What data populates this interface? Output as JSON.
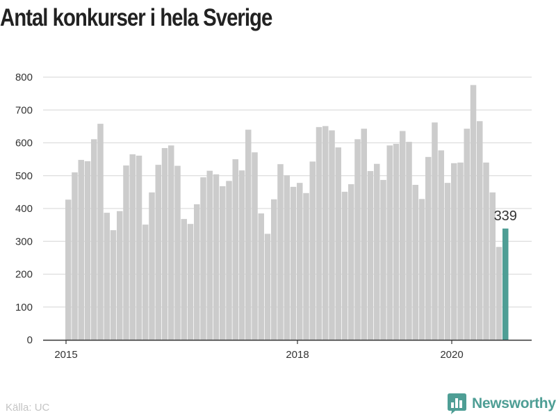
{
  "chart_data": {
    "type": "bar",
    "title": "Antal konkurser i hela Sverige",
    "xlabel": "",
    "ylabel": "",
    "ylim": [
      0,
      800
    ],
    "yticks": [
      0,
      100,
      200,
      300,
      400,
      500,
      600,
      700,
      800
    ],
    "grid": true,
    "legend": "none",
    "x_tick_labels": [
      {
        "label": "2015",
        "index": 0
      },
      {
        "label": "2018",
        "index": 36
      },
      {
        "label": "2020",
        "index": 60
      }
    ],
    "values": [
      427,
      510,
      548,
      544,
      611,
      658,
      387,
      334,
      392,
      531,
      565,
      561,
      351,
      449,
      533,
      584,
      592,
      530,
      368,
      353,
      413,
      495,
      515,
      504,
      468,
      484,
      550,
      516,
      640,
      571,
      385,
      323,
      428,
      535,
      501,
      466,
      478,
      447,
      543,
      648,
      651,
      638,
      586,
      451,
      474,
      611,
      643,
      514,
      536,
      487,
      592,
      597,
      636,
      603,
      472,
      429,
      557,
      662,
      577,
      478,
      538,
      540,
      643,
      776,
      666,
      540,
      449,
      283,
      339
    ],
    "highlight": {
      "index": 68,
      "label": "339",
      "color": "#4e9e95"
    },
    "bar_color": "#cccccc"
  },
  "footer": {
    "source": "Källa: UC",
    "brand": "Newsworthy",
    "brand_color": "#4e9e95",
    "brand_icon": "bar-chart-speech-bubble-icon"
  }
}
